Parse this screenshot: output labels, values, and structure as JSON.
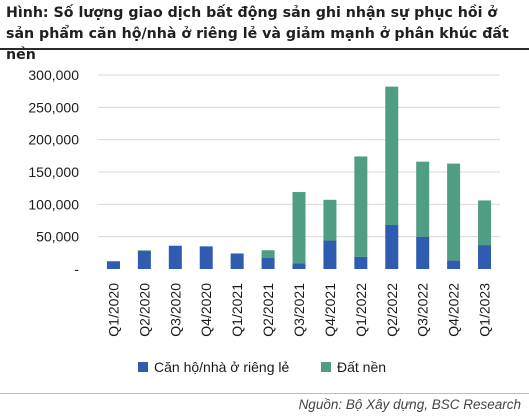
{
  "header": {
    "title": "Hình: Số lượng giao dịch bất động sản ghi nhận sự phục hồi ở sản phẩm căn hộ/nhà ở riêng lẻ và giảm mạnh ở phân khúc đất nền"
  },
  "footer": {
    "source": "Nguồn: Bộ Xây dựng, BSC Research"
  },
  "chart_data": {
    "type": "bar",
    "stacked": true,
    "title": "",
    "xlabel": "",
    "ylabel": "",
    "ylim": [
      0,
      300000
    ],
    "yticks": [
      0,
      50000,
      100000,
      150000,
      200000,
      250000,
      300000
    ],
    "ytick_labels": [
      "-",
      "50,000",
      "100,000",
      "150,000",
      "200,000",
      "250,000",
      "300,000"
    ],
    "grid": true,
    "legend_position": "bottom",
    "categories": [
      "Q1/2020",
      "Q2/2020",
      "Q3/2020",
      "Q4/2020",
      "Q1/2021",
      "Q2/2021",
      "Q3/2021",
      "Q4/2021",
      "Q1/2022",
      "Q2/2022",
      "Q3/2022",
      "Q4/2022",
      "Q1/2023"
    ],
    "series": [
      {
        "name": "Căn hộ/nhà ở riêng lẻ",
        "color": "#2f5bb0",
        "values": [
          12000,
          28000,
          36000,
          35000,
          24000,
          17000,
          9000,
          44000,
          19000,
          68000,
          50000,
          13000,
          37000
        ]
      },
      {
        "name": "Đất nền",
        "color": "#4f9d82",
        "values": [
          0,
          1000,
          0,
          0,
          0,
          12000,
          110000,
          63000,
          155000,
          214000,
          116000,
          150000,
          69000
        ]
      }
    ]
  }
}
